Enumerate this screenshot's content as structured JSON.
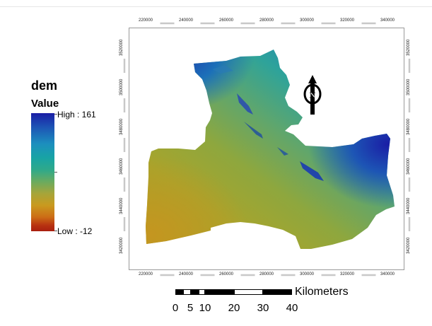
{
  "legend": {
    "title": "dem",
    "subtitle": "Value",
    "high_label": "High : 161",
    "low_label": "Low : -12",
    "high_value": 161,
    "low_value": -12,
    "color_ramp": [
      "#1a1ea5",
      "#1c8fbe",
      "#18a4a4",
      "#6aab5f",
      "#c99a1f",
      "#a81f0f"
    ]
  },
  "map": {
    "x_ticks": [
      "220000",
      "240000",
      "260000",
      "280000",
      "300000",
      "320000",
      "340000"
    ],
    "y_ticks": [
      "3420000",
      "3440000",
      "3460000",
      "3480000",
      "3500000",
      "3520000"
    ],
    "north_arrow_label": "N"
  },
  "scale_bar": {
    "units": "Kilometers",
    "labels": [
      "0",
      "5",
      "10",
      "20",
      "30",
      "40"
    ]
  },
  "colors": {
    "frame": "#9a9a9a",
    "tick_dash": "#c8c8c8",
    "dem_high": "#1a1ea5",
    "dem_low": "#a81f0f"
  }
}
